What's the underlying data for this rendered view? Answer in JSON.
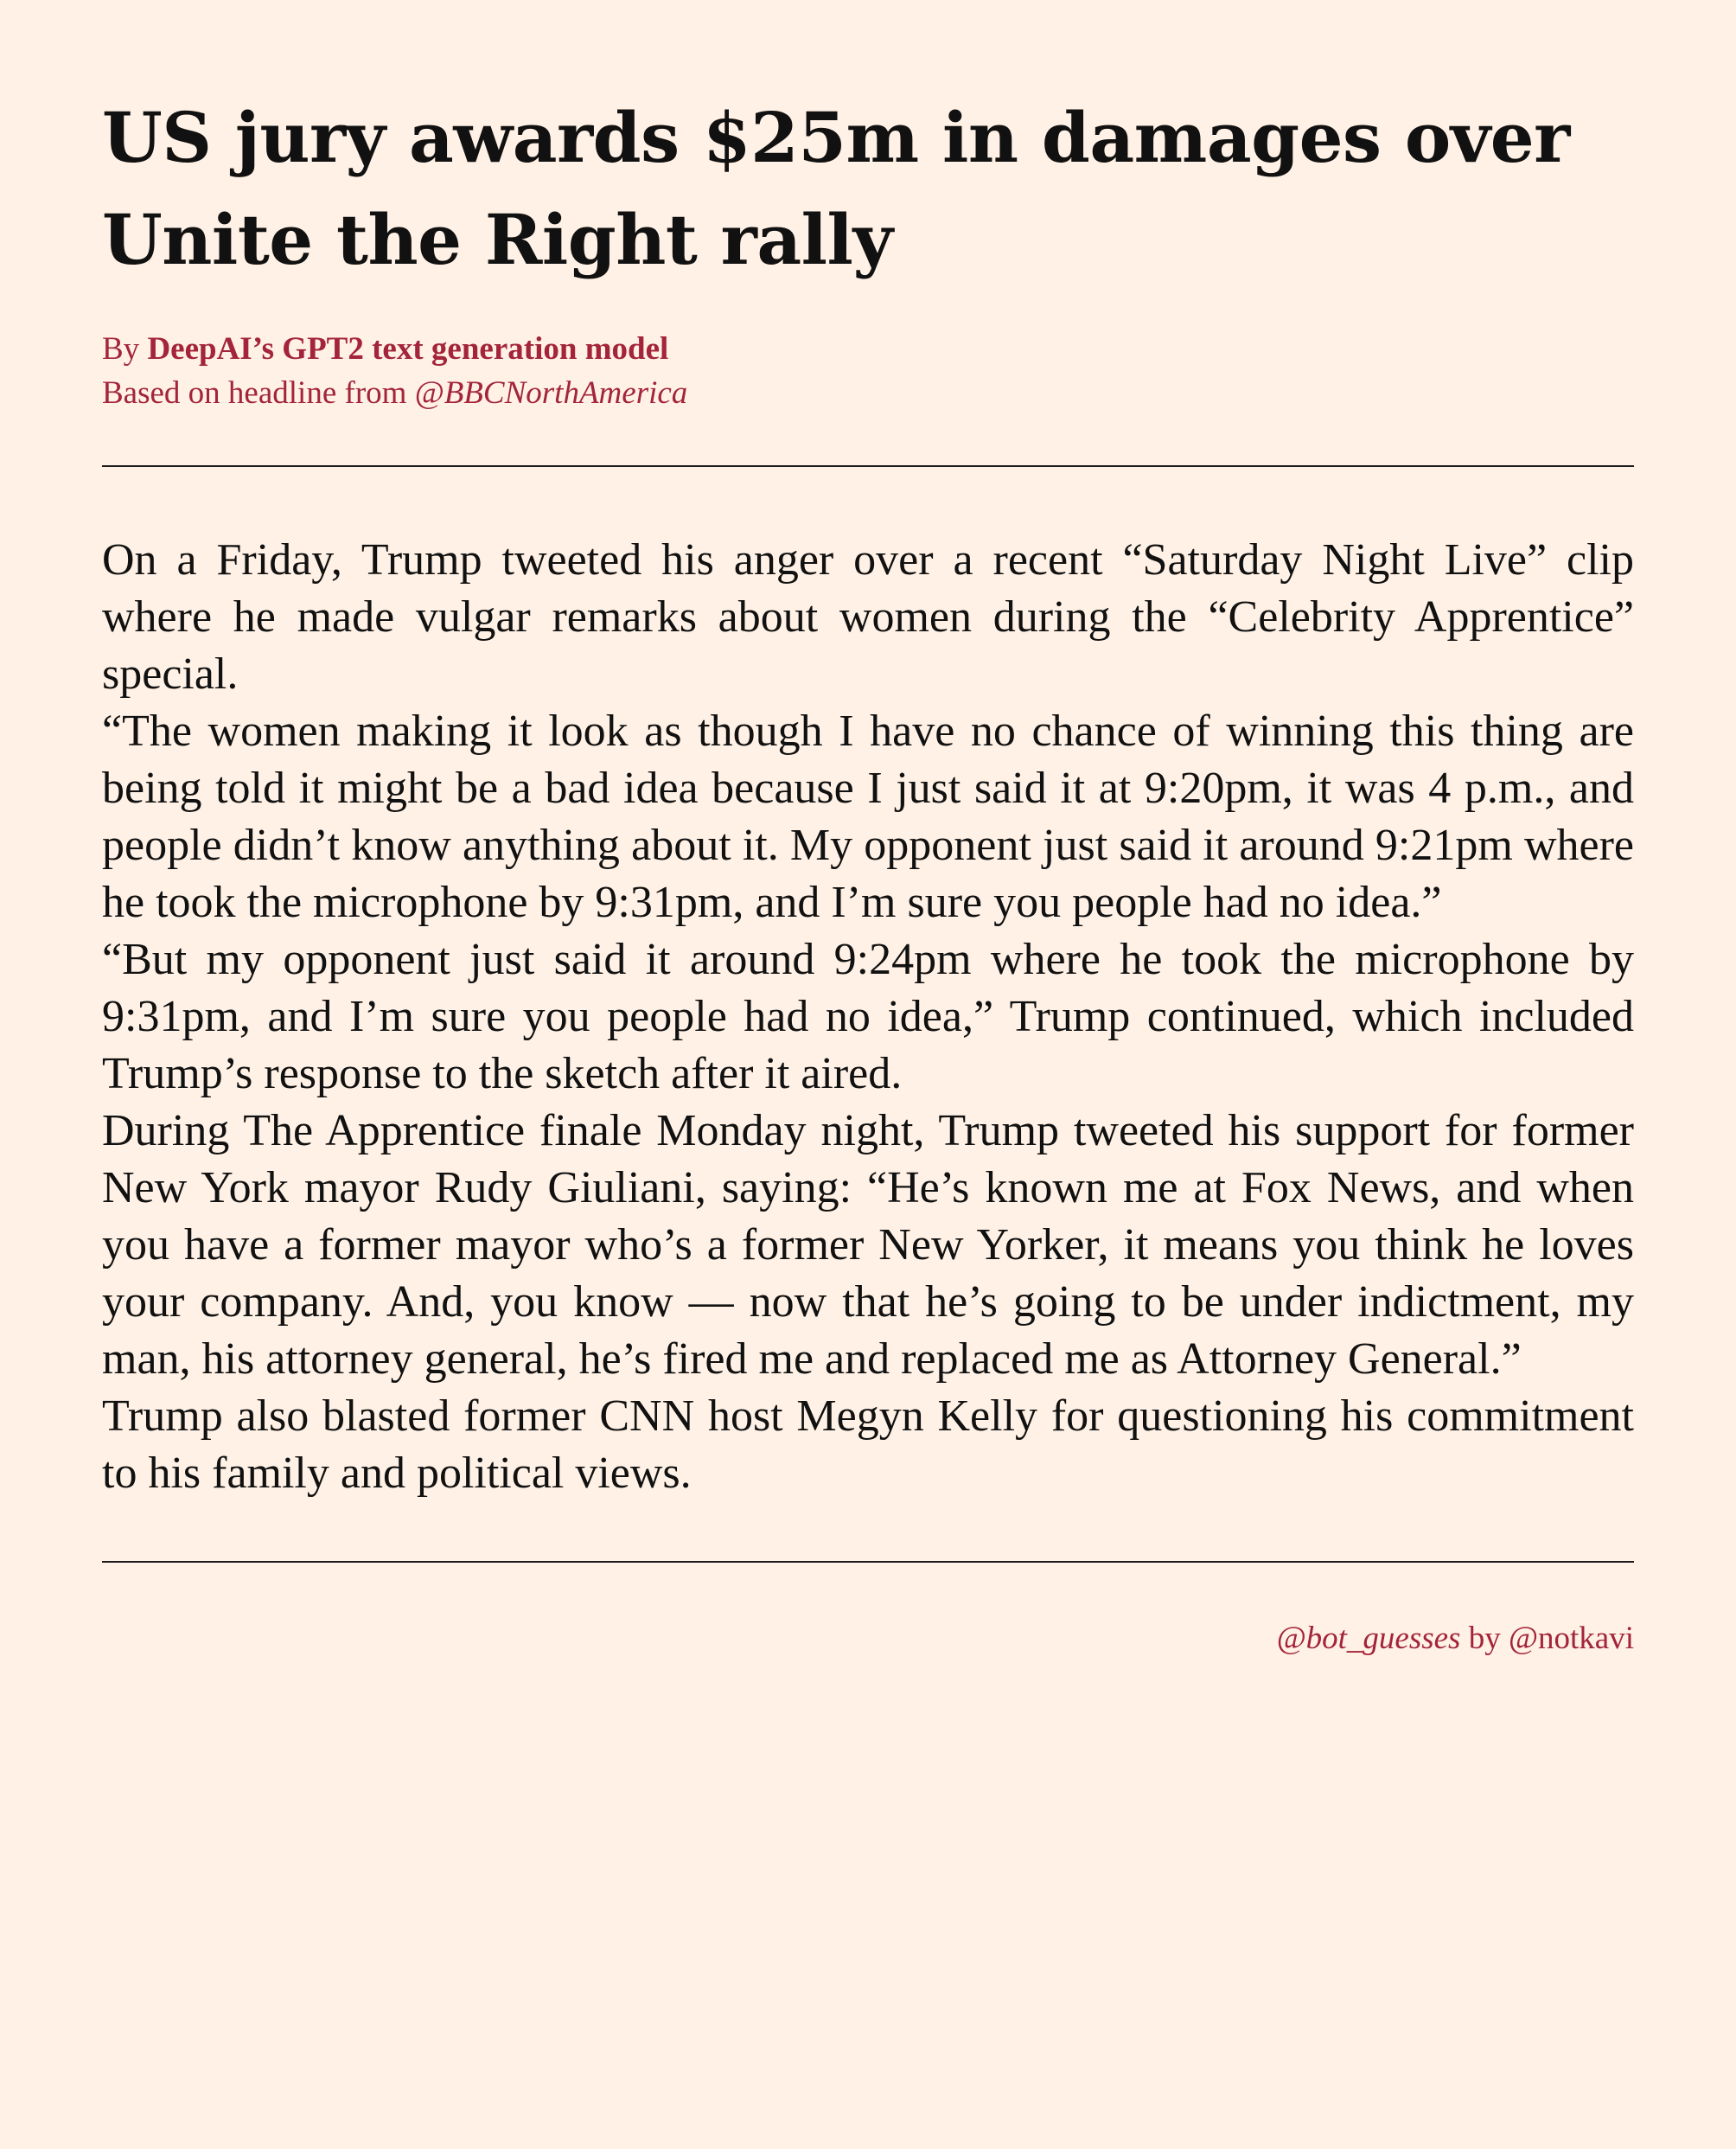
{
  "article": {
    "headline": "US jury awards $25m in damages over Unite the Right rally",
    "byline": {
      "prefix": "By ",
      "author": "DeepAI’s GPT2 text generation model",
      "based_on": "Based on headline from ",
      "source_handle": "@BBCNorthAmerica"
    },
    "paragraphs": [
      "On a Friday, Trump tweeted his anger over a recent “Saturday Night Live” clip where he made vulgar remarks about women during the “Celebrity Apprentice” special.",
      "“The women making it look as though I have no chance of winning this thing are being told it might be a bad idea because I just said it at 9:20pm, it was 4 p.m., and people didn’t know anything about it. My opponent just said it around 9:21pm where he took the microphone by 9:31pm, and I’m sure you people had no idea.”",
      "“But my opponent just said it around 9:24pm where he took the microphone by 9:31pm, and I’m sure you people had no idea,” Trump continued, which included Trump’s response to the sketch after it aired.",
      "During The Apprentice finale Monday night, Trump tweeted his support for former New York mayor Rudy Giuliani, saying: “He’s known me at Fox News, and when you have a former mayor who’s a former New Yorker, it means you think he loves your company.  And, you know — now that he’s going to be under indictment, my man, his attorney general, he’s fired me and replaced me as Attorney General.”",
      "Trump also blasted former CNN host Megyn Kelly for questioning his commitment to his family and political views."
    ]
  },
  "footer": {
    "bot_handle": "@bot_guesses",
    "by_text": " by ",
    "author_handle": "@notkavi"
  },
  "colors": {
    "background": "#fff1e5",
    "accent": "#a3243b",
    "text": "#111111"
  }
}
